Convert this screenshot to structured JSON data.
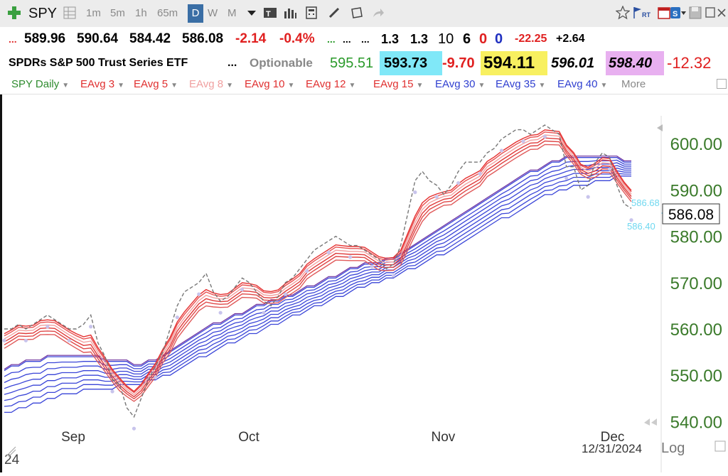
{
  "toolbar": {
    "symbol": "SPY",
    "intervals": [
      "1m",
      "5m",
      "1h",
      "65m",
      "D",
      "W",
      "M"
    ],
    "active_interval": "D"
  },
  "quote": {
    "row1": {
      "dots1": "...",
      "open": "589.96",
      "high": "590.64",
      "low": "584.42",
      "close": "586.08",
      "change": "-2.14",
      "change_pct": "-0.4%",
      "dots2": "...",
      "dots3": "...",
      "dots4": "...",
      "v1": "1.3",
      "v2": "1.3",
      "v3": "10",
      "v4": "6",
      "v5": "0",
      "v6": "0",
      "v7": "-22.25",
      "v8": "+2.64"
    },
    "row2": {
      "name": "SPDRs S&P 500 Trust Series ETF",
      "dots": "...",
      "optionable": "Optionable",
      "p1": "595.51",
      "p2": "593.73",
      "p3": "-9.70",
      "p4": "594.11",
      "p5": "596.01",
      "p6": "598.40",
      "p7": "-12.32"
    }
  },
  "indicators": [
    {
      "label": "SPY Daily",
      "color": "#2e8b2e"
    },
    {
      "label": "EAvg 3",
      "color": "#e03030"
    },
    {
      "label": "EAvg 5",
      "color": "#e03030"
    },
    {
      "label": "EAvg 8",
      "color": "#f0a0a0"
    },
    {
      "label": "EAvg 10",
      "color": "#e03030"
    },
    {
      "label": "EAvg 12",
      "color": "#e03030"
    },
    {
      "label": "EAvg 15",
      "color": "#e03030"
    },
    {
      "label": "EAvg 30",
      "color": "#3040d0"
    },
    {
      "label": "EAvg 35",
      "color": "#3040d0"
    },
    {
      "label": "EAvg 40",
      "color": "#3040d0"
    },
    {
      "label": "More",
      "color": "#888888"
    }
  ],
  "chart_data": {
    "type": "line",
    "x_labels": [
      "Sep",
      "Oct",
      "Nov",
      "Dec"
    ],
    "y_ticks": [
      "600.00",
      "590.00",
      "580.00",
      "570.00",
      "560.00",
      "550.00",
      "540.00"
    ],
    "ylim": [
      537,
      606
    ],
    "last_price": "586.08",
    "marker1": "586.68",
    "marker2": "586.40",
    "date_label": "12/31/2024",
    "log_label": "Log",
    "corner_label": "24",
    "price_series": [
      560,
      560,
      561,
      560,
      561,
      562,
      563,
      562,
      561,
      560,
      560,
      561,
      563,
      557,
      554,
      549,
      548,
      543,
      541,
      545,
      549,
      552,
      555,
      560,
      565,
      568,
      569,
      570,
      572,
      568,
      566,
      567,
      569,
      571,
      570,
      568,
      566,
      565,
      567,
      570,
      571,
      573,
      575,
      577,
      578,
      579,
      580,
      579,
      578,
      578,
      577,
      576,
      575,
      573,
      574,
      578,
      585,
      592,
      594,
      592,
      591,
      589,
      591,
      594,
      596,
      596,
      596,
      598,
      599,
      601,
      602,
      603,
      603,
      602,
      603,
      604,
      603,
      602,
      595,
      595,
      590,
      591,
      596,
      598,
      597,
      591,
      587,
      586
    ],
    "ema_short": [
      558,
      559,
      560,
      560,
      560,
      561,
      561,
      561,
      560,
      559,
      558,
      557,
      557,
      555,
      553,
      551,
      549,
      548,
      547,
      548,
      550,
      552,
      555,
      557,
      560,
      562,
      564,
      566,
      567,
      567,
      567,
      567,
      568,
      569,
      569,
      569,
      568,
      568,
      568,
      569,
      570,
      571,
      573,
      574,
      575,
      576,
      577,
      577,
      577,
      577,
      577,
      576,
      575,
      575,
      575,
      576,
      579,
      582,
      585,
      587,
      588,
      589,
      589,
      590,
      591,
      592,
      593,
      595,
      596,
      597,
      598,
      599,
      600,
      601,
      601,
      602,
      602,
      602,
      600,
      598,
      596,
      595,
      595,
      596,
      596,
      594,
      592,
      590
    ],
    "ema_long_top": [
      551,
      552,
      552,
      553,
      553,
      553,
      554,
      554,
      554,
      554,
      554,
      554,
      554,
      554,
      553,
      553,
      553,
      553,
      552,
      552,
      553,
      553,
      554,
      555,
      556,
      557,
      558,
      559,
      560,
      561,
      561,
      562,
      563,
      563,
      564,
      565,
      565,
      566,
      566,
      567,
      567,
      568,
      569,
      569,
      570,
      571,
      571,
      572,
      573,
      573,
      574,
      574,
      574,
      575,
      575,
      576,
      577,
      578,
      579,
      580,
      581,
      582,
      583,
      584,
      585,
      586,
      587,
      588,
      589,
      590,
      591,
      592,
      593,
      594,
      594,
      595,
      596,
      596,
      597,
      597,
      597,
      597,
      597,
      597,
      597,
      597,
      596,
      596
    ],
    "ema_long_bottom": [
      542,
      542,
      543,
      543,
      544,
      544,
      545,
      545,
      546,
      546,
      546,
      547,
      547,
      547,
      547,
      547,
      548,
      548,
      548,
      548,
      549,
      549,
      550,
      550,
      551,
      552,
      553,
      554,
      554,
      555,
      556,
      557,
      557,
      558,
      559,
      559,
      560,
      561,
      561,
      562,
      563,
      563,
      564,
      565,
      565,
      566,
      567,
      567,
      568,
      569,
      569,
      570,
      570,
      571,
      571,
      572,
      573,
      573,
      574,
      575,
      576,
      576,
      577,
      578,
      579,
      580,
      581,
      582,
      583,
      584,
      584,
      585,
      586,
      587,
      588,
      589,
      589,
      590,
      590,
      591,
      591,
      591,
      592,
      592,
      592,
      593,
      593,
      593
    ]
  }
}
